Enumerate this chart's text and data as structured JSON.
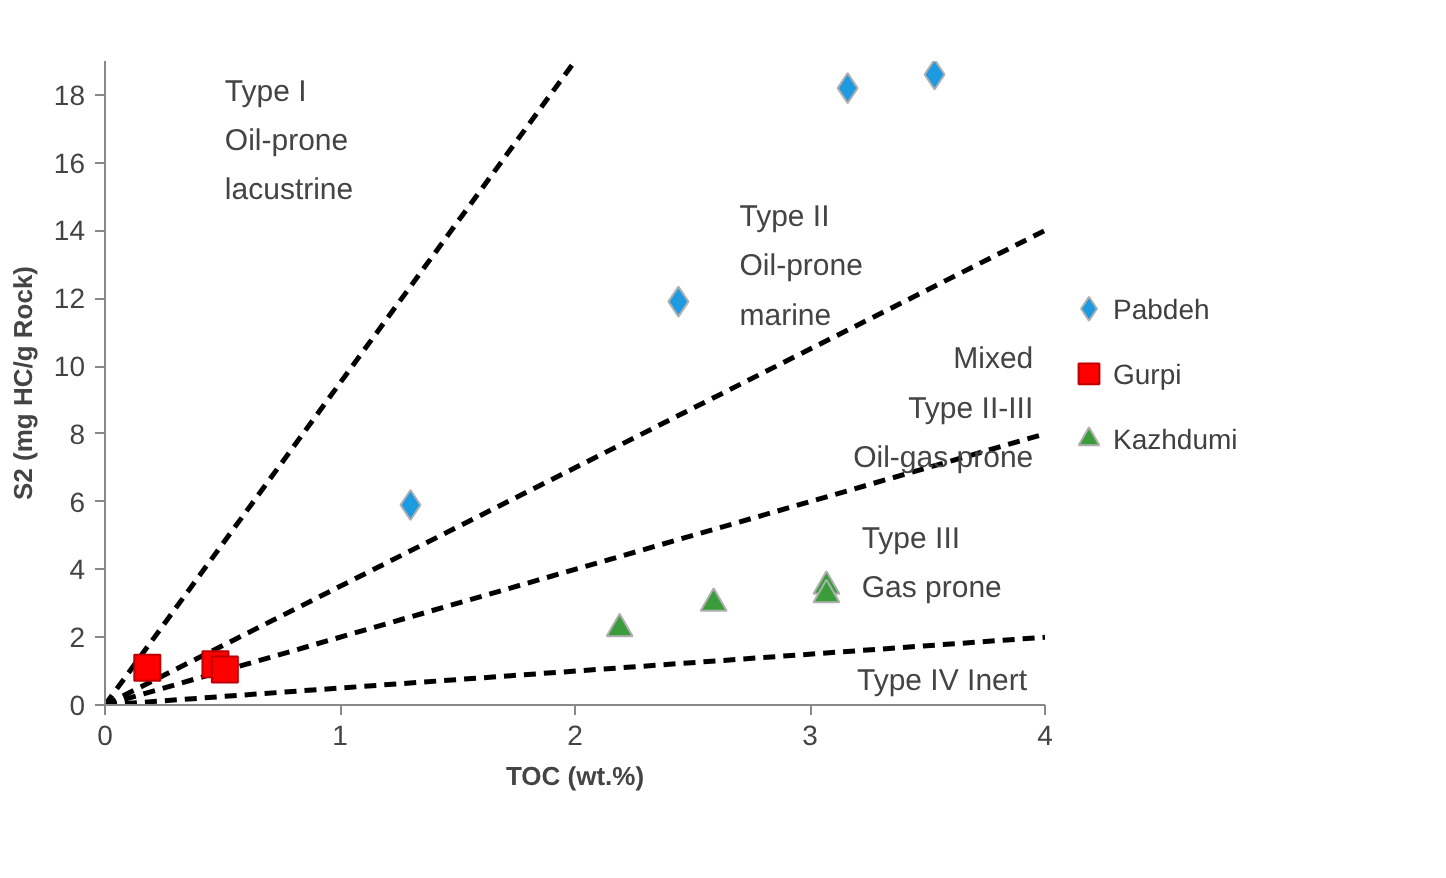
{
  "chart_data": {
    "type": "scatter",
    "xlabel": "TOC (wt.%)",
    "ylabel": "S2 (mg HC/g Rock)",
    "xlim": [
      0,
      4
    ],
    "ylim": [
      0,
      19
    ],
    "xticks": [
      0,
      1,
      2,
      3,
      4
    ],
    "yticks": [
      0,
      2,
      4,
      6,
      8,
      10,
      12,
      14,
      16,
      18
    ],
    "grid": false,
    "legend": "right",
    "series": [
      {
        "type": "line",
        "line_style": "dashed",
        "marker": "none",
        "color": "#000000",
        "x": [
          0,
          2.0
        ],
        "values": [
          0,
          19
        ]
      },
      {
        "type": "line",
        "line_style": "dashed",
        "marker": "none",
        "color": "#000000",
        "x": [
          0,
          4
        ],
        "values": [
          0,
          14
        ]
      },
      {
        "type": "line",
        "line_style": "dashed",
        "marker": "none",
        "color": "#000000",
        "x": [
          0,
          4
        ],
        "values": [
          0,
          8
        ]
      },
      {
        "type": "line",
        "line_style": "dashed",
        "marker": "none",
        "color": "#000000",
        "x": [
          0,
          4
        ],
        "values": [
          0,
          2
        ]
      },
      {
        "name": "Pabdeh",
        "marker": "diamond",
        "color": "#1e9be0",
        "x": [
          1.3,
          2.44,
          3.16,
          3.53
        ],
        "values": [
          5.9,
          11.9,
          18.2,
          18.6
        ]
      },
      {
        "name": "Gurpi",
        "marker": "square",
        "color": "#ff0000",
        "x": [
          0.18,
          0.47,
          0.51
        ],
        "values": [
          1.1,
          1.2,
          1.05
        ]
      },
      {
        "name": "Kazhdumi",
        "marker": "triangle",
        "color": "#3a9c3a",
        "x": [
          2.19,
          2.59,
          3.07,
          3.07
        ],
        "values": [
          2.25,
          3.0,
          3.5,
          3.25
        ]
      }
    ],
    "annotations": [
      "Type I\nOil-prone\nlacustrine",
      "Type II\nOil-prone\nmarine",
      "Mixed\nType II-III\nOil-gas prone",
      "Type III\nGas prone",
      "Type IV Inert"
    ]
  }
}
